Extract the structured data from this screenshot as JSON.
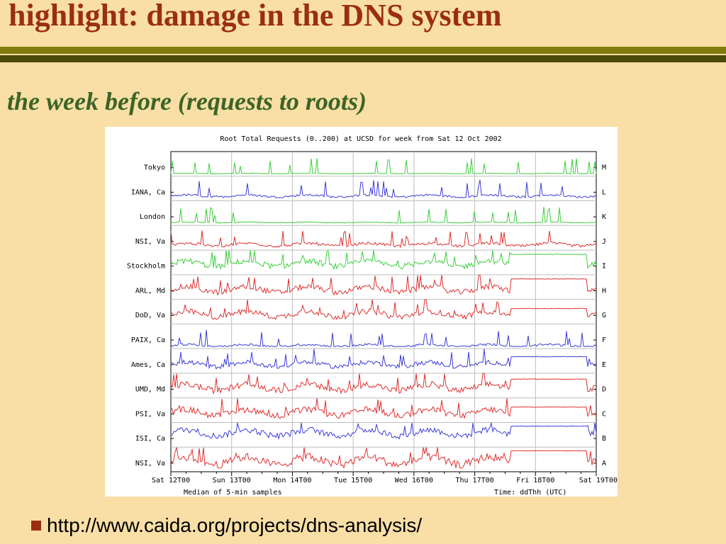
{
  "slide": {
    "title": "highlight: damage in the DNS system",
    "subtitle": "the week before (requests to roots)",
    "link": "http://www.caida.org/projects/dns-analysis/"
  },
  "colors": {
    "green": "#3ccf3c",
    "blue": "#3c3cd8",
    "red": "#de3030",
    "title": "#9b2e12",
    "subtitle": "#3c6426",
    "background": "#f9dfa6"
  },
  "chart_data": {
    "type": "line",
    "title": "Root Total Requests (0..200) at UCSD for week from Sat 12 Oct 2002",
    "xlabel": "Median of 5-min samples",
    "time_note": "Time: ddThh (UTC)",
    "x_ticks": [
      "Sat 12T00",
      "Sun 13T00",
      "Mon 14T00",
      "Tue 15T00",
      "Wed 16T00",
      "Thu 17T00",
      "Fri 18T00",
      "Sat 19T00"
    ],
    "per_row_range": [
      0,
      200
    ],
    "rows": [
      {
        "letter": "M",
        "label": "Tokyo",
        "color": "green",
        "level": 5,
        "noise": 4,
        "flat_from": null,
        "flat_level": null
      },
      {
        "letter": "L",
        "label": "IANA, Ca",
        "color": "blue",
        "level": 25,
        "noise": 18,
        "flat_from": null,
        "flat_level": null
      },
      {
        "letter": "K",
        "label": "London",
        "color": "green",
        "level": 8,
        "noise": 6,
        "flat_from": null,
        "flat_level": null
      },
      {
        "letter": "J",
        "label": "NSI, Va",
        "color": "red",
        "level": 30,
        "noise": 25,
        "flat_from": null,
        "flat_level": null
      },
      {
        "letter": "I",
        "label": "Stockholm",
        "color": "green",
        "level": 80,
        "noise": 50,
        "flat_from": 5.6,
        "flat_level": 165
      },
      {
        "letter": "H",
        "label": "ARL, Md",
        "color": "red",
        "level": 70,
        "noise": 50,
        "flat_from": 5.6,
        "flat_level": 165
      },
      {
        "letter": "G",
        "label": "DoD, Va",
        "color": "red",
        "level": 70,
        "noise": 50,
        "flat_from": 5.6,
        "flat_level": 120
      },
      {
        "letter": "F",
        "label": "PAIX, Ca",
        "color": "blue",
        "level": 8,
        "noise": 20,
        "flat_from": null,
        "flat_level": null
      },
      {
        "letter": "E",
        "label": "Ames, Ca",
        "color": "blue",
        "level": 60,
        "noise": 40,
        "flat_from": 5.6,
        "flat_level": 130
      },
      {
        "letter": "D",
        "label": "UMD, Md",
        "color": "red",
        "level": 75,
        "noise": 55,
        "flat_from": 5.6,
        "flat_level": 150
      },
      {
        "letter": "C",
        "label": "PSI, Va",
        "color": "red",
        "level": 70,
        "noise": 55,
        "flat_from": 5.6,
        "flat_level": 120
      },
      {
        "letter": "B",
        "label": "ISI, Ca",
        "color": "blue",
        "level": 110,
        "noise": 55,
        "flat_from": 5.6,
        "flat_level": 170
      },
      {
        "letter": "A",
        "label": "NSI, Va",
        "color": "red",
        "level": 80,
        "noise": 70,
        "flat_from": 5.6,
        "flat_level": 170
      }
    ]
  }
}
